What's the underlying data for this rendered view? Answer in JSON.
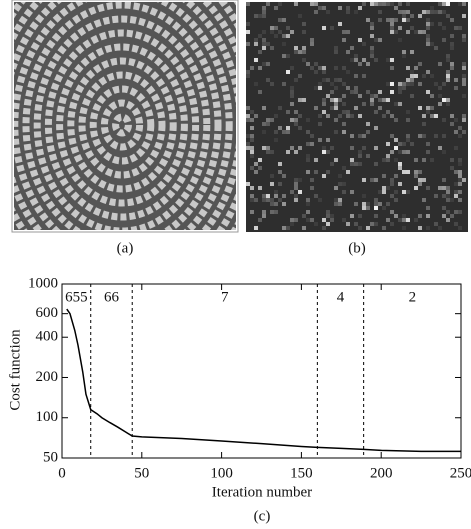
{
  "panels": [
    {
      "label": "(a)"
    },
    {
      "label": "(b)"
    }
  ],
  "chart_data": {
    "type": "line",
    "caption": "(c)",
    "xlabel": "Iteration number",
    "ylabel": "Cost function",
    "x": [
      3,
      5,
      8,
      10,
      13,
      15,
      18,
      22,
      25,
      30,
      35,
      40,
      44,
      50,
      75,
      100,
      125,
      150,
      160,
      175,
      189,
      200,
      225,
      250
    ],
    "values": [
      650,
      600,
      450,
      350,
      220,
      150,
      115,
      107,
      100,
      92,
      85,
      78,
      73,
      72,
      70,
      67,
      64,
      61,
      60,
      59,
      58,
      57,
      56,
      56
    ],
    "color": "#000000",
    "log_y": true,
    "xlim": [
      0,
      250
    ],
    "xticks": [
      0,
      50,
      100,
      150,
      200,
      250
    ],
    "ylim": [
      50,
      1000
    ],
    "yticks": [
      50,
      100,
      200,
      400,
      600,
      1000
    ],
    "stage_bounds": [
      18,
      44,
      160,
      189
    ],
    "stage_labels": [
      "655",
      "66",
      "7",
      "4",
      "2"
    ]
  }
}
